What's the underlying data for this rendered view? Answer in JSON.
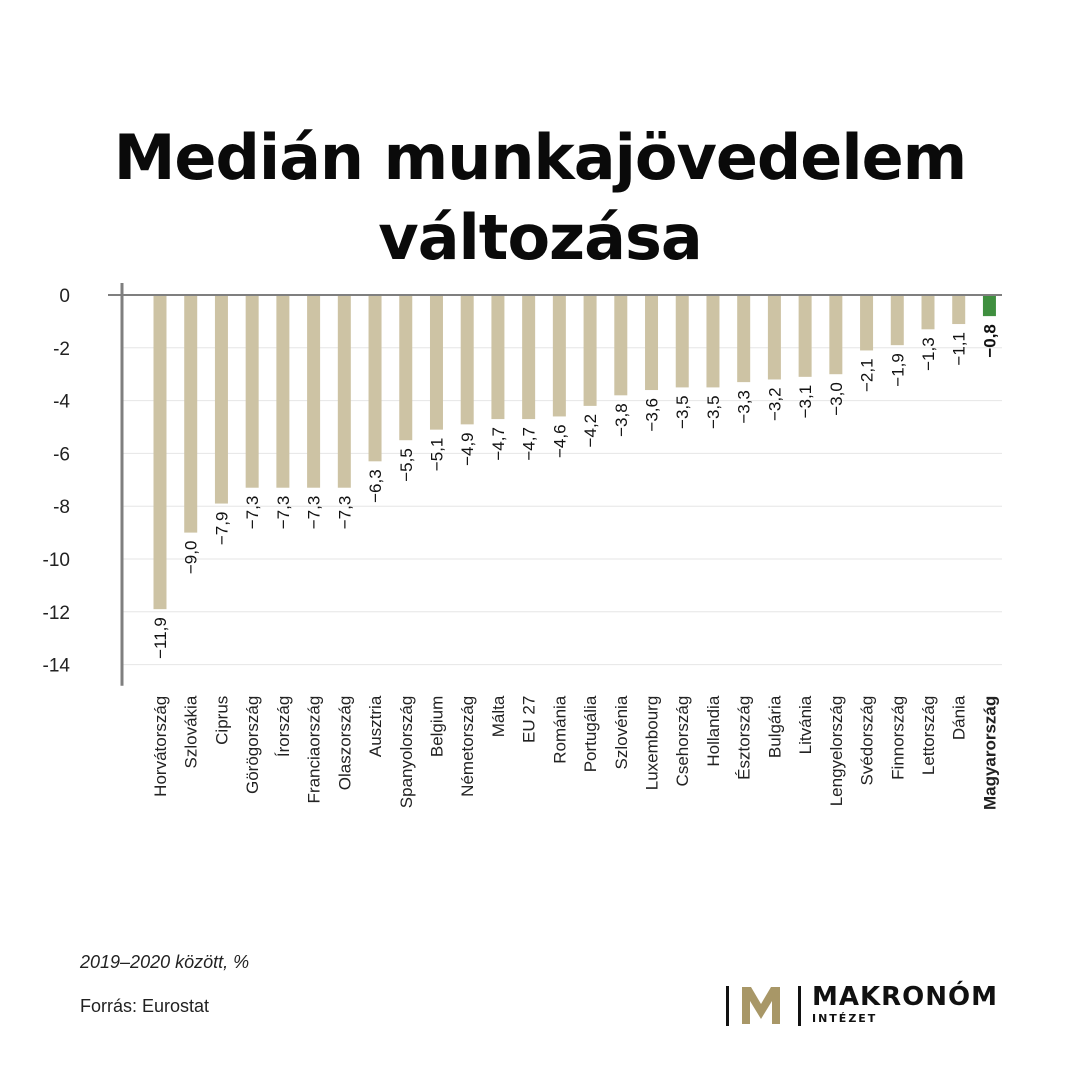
{
  "title_line1": "Medián munkajövedelem",
  "title_line2": "változása",
  "note": "2019–2020 között, %",
  "source": "Forrás: Eurostat",
  "logo": {
    "name": "MAKRONÓM",
    "sub": "INTÉZET"
  },
  "colors": {
    "bar": "#cdc3a4",
    "highlight": "#3f8f3f",
    "grid": "#e6e6e6",
    "axis": "#7f7f7f",
    "logo_gold": "#a89767"
  },
  "chart_data": {
    "type": "bar",
    "categories": [
      "Horvátország",
      "Szlovákia",
      "Ciprus",
      "Görögország",
      "Írország",
      "Franciaország",
      "Olaszország",
      "Ausztria",
      "Spanyolország",
      "Belgium",
      "Németország",
      "Málta",
      "EU 27",
      "Románia",
      "Portugália",
      "Szlovénia",
      "Luxembourg",
      "Csehország",
      "Hollandia",
      "Észtország",
      "Bulgária",
      "Litvánia",
      "Lengyelország",
      "Svédország",
      "Finnország",
      "Lettország",
      "Dánia",
      "Magyarország"
    ],
    "values": [
      -11.9,
      -9.0,
      -7.9,
      -7.3,
      -7.3,
      -7.3,
      -7.3,
      -6.3,
      -5.5,
      -5.1,
      -4.9,
      -4.7,
      -4.7,
      -4.6,
      -4.2,
      -3.8,
      -3.6,
      -3.5,
      -3.5,
      -3.3,
      -3.2,
      -3.1,
      -3.0,
      -2.1,
      -1.9,
      -1.3,
      -1.1,
      -0.8
    ],
    "value_labels": [
      "−11,9",
      "−9,0",
      "−7,9",
      "−7,3",
      "−7,3",
      "−7,3",
      "−7,3",
      "−6,3",
      "−5,5",
      "−5,1",
      "−4,9",
      "−4,7",
      "−4,7",
      "−4,6",
      "−4,2",
      "−3,8",
      "−3,6",
      "−3,5",
      "−3,5",
      "−3,3",
      "−3,2",
      "−3,1",
      "−3,0",
      "−2,1",
      "−1,9",
      "−1,3",
      "−1,1",
      "−0,8"
    ],
    "highlight": "Magyarország",
    "yticks": [
      0,
      -2,
      -4,
      -6,
      -8,
      -10,
      -12,
      -14
    ],
    "ytick_labels": [
      "0",
      "-2",
      "-4",
      "-6",
      "-8",
      "-10",
      "-12",
      "-14"
    ],
    "ylim": [
      -14.8,
      0
    ],
    "grid": true
  }
}
